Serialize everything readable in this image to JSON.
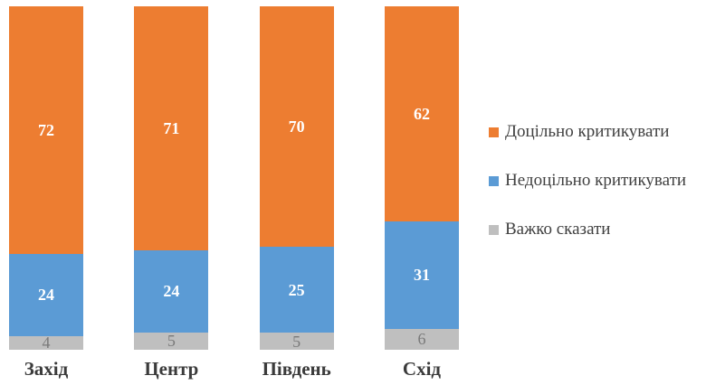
{
  "chart_data": {
    "type": "bar",
    "subtype": "stacked-100",
    "orientation": "vertical",
    "title": "",
    "categories": [
      "Захід",
      "Центр",
      "Південь",
      "Схід"
    ],
    "series": [
      {
        "name": "Доцільно критикувати",
        "color": "#ED7D31",
        "label_color": "#FFFFFF",
        "label_bold": true,
        "values": [
          72,
          71,
          70,
          62
        ]
      },
      {
        "name": "Недоцільно критикувати",
        "color": "#5B9BD5",
        "label_color": "#FFFFFF",
        "label_bold": true,
        "values": [
          24,
          24,
          25,
          31
        ]
      },
      {
        "name": "Важко сказати",
        "color": "#BFBFBF",
        "label_color": "#7A7A7A",
        "label_bold": false,
        "values": [
          4,
          5,
          5,
          6
        ]
      }
    ],
    "stack_order": "first-series-on-top",
    "value_labels": "inside-center",
    "grid": false,
    "axes": {
      "x_visible": false,
      "y_visible": false
    },
    "legend": {
      "position": "right"
    },
    "background": "#FFFFFF",
    "category_label_color": "#3B3B3B",
    "legend_text_color": "#404040"
  }
}
